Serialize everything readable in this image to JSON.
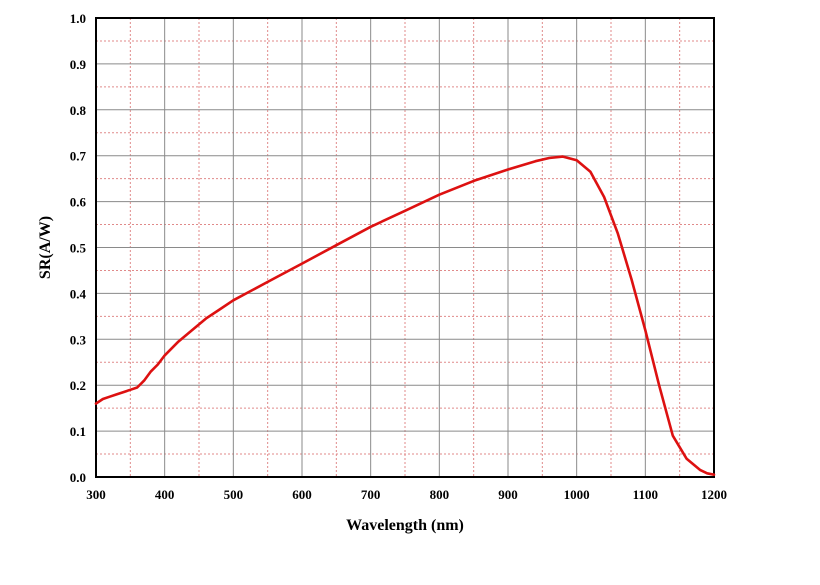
{
  "chart_data": {
    "type": "line",
    "title": "",
    "xlabel": "Wavelength (nm)",
    "ylabel": "SR(A/W)",
    "xlim": [
      300,
      1200
    ],
    "ylim": [
      0.0,
      1.0
    ],
    "x_major_ticks": [
      300,
      400,
      500,
      600,
      700,
      800,
      900,
      1000,
      1100,
      1200
    ],
    "x_tick_labels": [
      "300",
      "400",
      "500",
      "600",
      "700",
      "800",
      "900",
      "1000",
      "1100",
      "1200"
    ],
    "y_major_ticks": [
      0.0,
      0.1,
      0.2,
      0.3,
      0.4,
      0.5,
      0.6,
      0.7,
      0.8,
      0.9,
      1.0
    ],
    "y_tick_labels": [
      "0.0",
      "0.1",
      "0.2",
      "0.3",
      "0.4",
      "0.5",
      "0.6",
      "0.7",
      "0.8",
      "0.9",
      "1.0"
    ],
    "x_minor_step": 50,
    "y_minor_step": 0.05,
    "grid": true,
    "legend": "none",
    "colors": {
      "series": "#dd1111",
      "major_grid": "#8a8a8a",
      "minor_grid": "#e08a8a",
      "frame": "#000000"
    },
    "series": [
      {
        "x": [
          300,
          310,
          320,
          330,
          340,
          350,
          360,
          370,
          380,
          390,
          400,
          420,
          440,
          460,
          480,
          500,
          550,
          600,
          650,
          700,
          750,
          800,
          850,
          900,
          940,
          960,
          980,
          1000,
          1020,
          1040,
          1060,
          1080,
          1100,
          1120,
          1140,
          1160,
          1180,
          1190,
          1200
        ],
        "y": [
          0.16,
          0.17,
          0.175,
          0.18,
          0.185,
          0.19,
          0.195,
          0.21,
          0.23,
          0.245,
          0.265,
          0.295,
          0.32,
          0.345,
          0.365,
          0.385,
          0.425,
          0.465,
          0.505,
          0.545,
          0.58,
          0.615,
          0.645,
          0.67,
          0.688,
          0.695,
          0.698,
          0.69,
          0.665,
          0.61,
          0.53,
          0.43,
          0.32,
          0.2,
          0.09,
          0.04,
          0.015,
          0.008,
          0.005
        ]
      }
    ]
  }
}
